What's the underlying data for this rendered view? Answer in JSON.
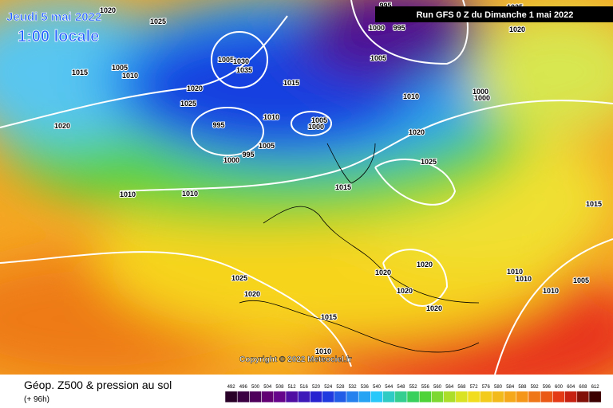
{
  "header": {
    "date": "Jeudi 5 mai 2022",
    "time": "1:00 locale",
    "run": "Run GFS 0 Z du Dimanche 1 mai 2022",
    "copyright": "Copyright © 2022 Meteociel.fr"
  },
  "footer": {
    "title": "Géop. Z500 & pression au sol",
    "subtitle": "(+ 96h)"
  },
  "colorbar": {
    "labels": [
      492,
      496,
      500,
      504,
      508,
      512,
      516,
      520,
      524,
      528,
      532,
      536,
      540,
      544,
      548,
      552,
      556,
      560,
      564,
      568,
      572,
      576,
      580,
      584,
      588,
      592,
      596,
      600,
      604,
      608,
      612
    ]
  },
  "isobar_labels": [
    1020,
    1025,
    1015,
    1005,
    1010,
    1020,
    1025,
    1005,
    1030,
    1035,
    995,
    1000,
    995,
    1005,
    1015,
    1010,
    1005,
    1000,
    995,
    1005,
    995,
    1000,
    1010,
    1000,
    1000,
    1020,
    1020,
    1025,
    1010,
    1010,
    1015,
    1015,
    1020,
    1020,
    1020,
    1020,
    1025,
    1020,
    1015,
    1010,
    1010,
    1010,
    1005,
    1010,
    1025,
    1020
  ]
}
